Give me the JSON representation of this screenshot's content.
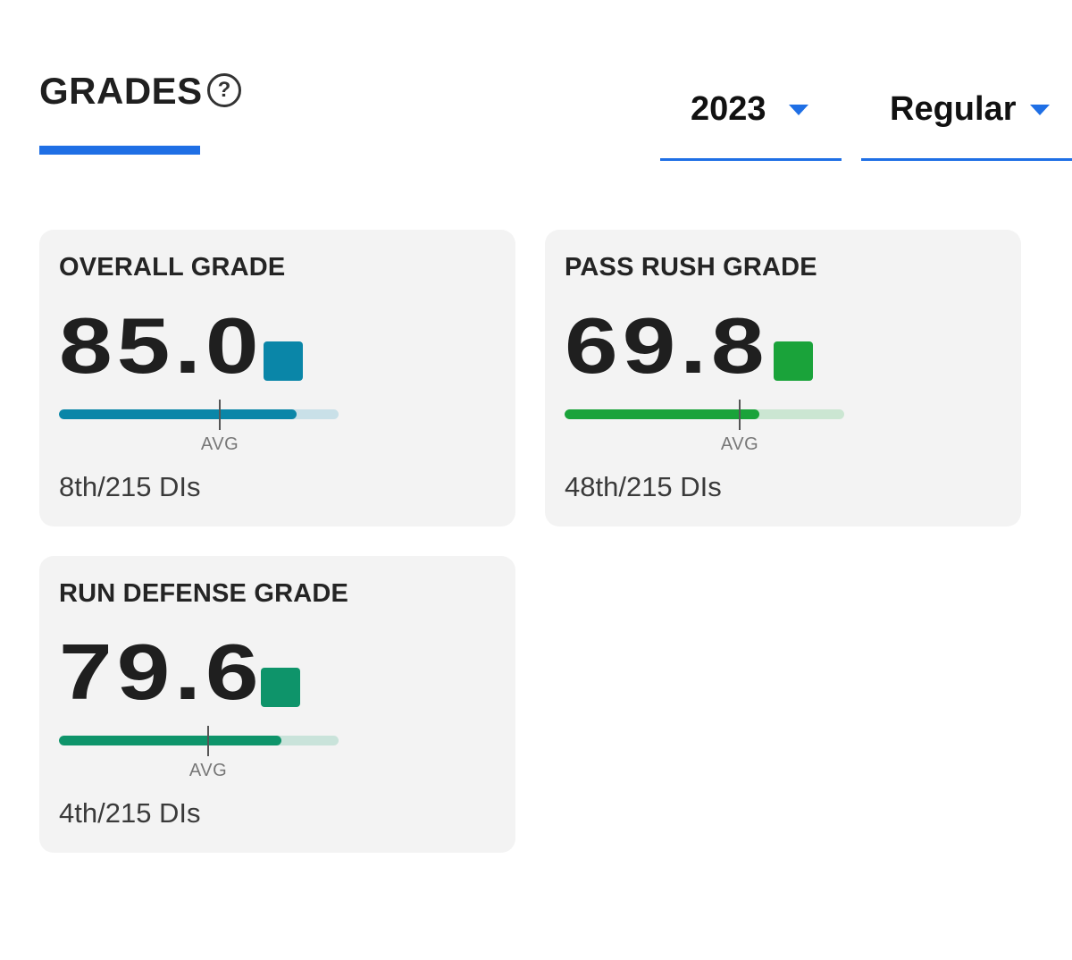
{
  "header": {
    "tab_title": "GRADES",
    "help_icon_glyph": "?",
    "accent_color": "#1f6fe5"
  },
  "filters": {
    "year": {
      "value": "2023",
      "icon": "caret-down-icon"
    },
    "season": {
      "value": "Regular",
      "icon": "caret-down-icon"
    }
  },
  "cards": [
    {
      "title": "OVERALL GRADE",
      "value": "85.0",
      "grade": 85.0,
      "color": "#0a86a8",
      "track_color": "#c9e0e8",
      "avg_label": "AVG",
      "rank": "8th/215 DIs"
    },
    {
      "title": "PASS RUSH GRADE",
      "value": "69.8",
      "grade": 69.8,
      "color": "#1aa33a",
      "track_color": "#cbe6d2",
      "avg_label": "AVG",
      "rank": "48th/215 DIs"
    },
    {
      "title": "RUN DEFENSE GRADE",
      "value": "79.6",
      "grade": 79.6,
      "color": "#0e946a",
      "track_color": "#c9e3da",
      "avg_label": "AVG",
      "rank": "4th/215 DIs"
    }
  ]
}
